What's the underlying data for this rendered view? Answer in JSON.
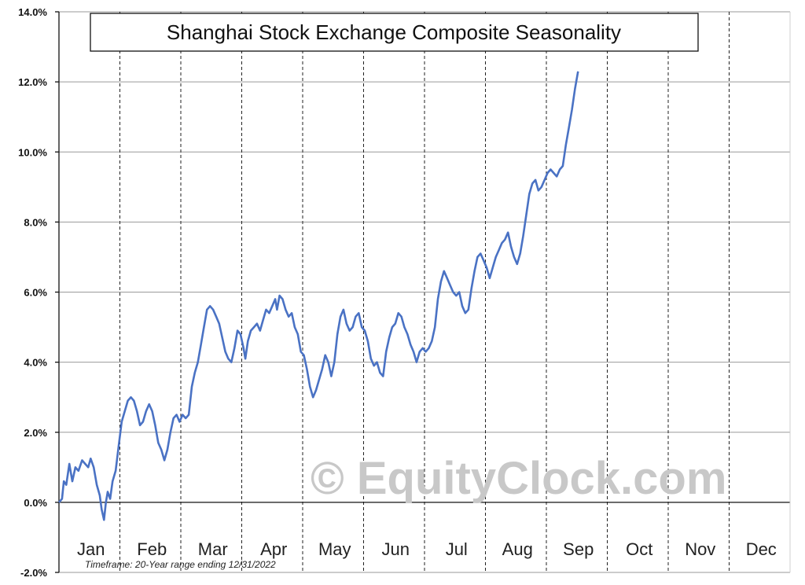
{
  "chart_data": {
    "type": "line",
    "title": "Shanghai Stock Exchange Composite Seasonality",
    "xlabel": "",
    "ylabel": "",
    "ylim": [
      -2.0,
      14.0
    ],
    "yticks": [
      "-2.0%",
      "0.0%",
      "2.0%",
      "4.0%",
      "6.0%",
      "8.0%",
      "10.0%",
      "12.0%",
      "14.0%"
    ],
    "x_tick_labels": [
      "Jan",
      "Feb",
      "Mar",
      "Apr",
      "May",
      "Jun",
      "Jul",
      "Aug",
      "Sep",
      "Oct",
      "Nov",
      "Dec"
    ],
    "x_units": "month (1 = start of Jan, 13 = end of Dec)",
    "grid": {
      "horizontal": true,
      "vertical_dashed": true
    },
    "line_color": "#4a72c4",
    "series": [
      {
        "values": [
          [
            1.0,
            0.0
          ],
          [
            1.05,
            0.1
          ],
          [
            1.08,
            0.6
          ],
          [
            1.12,
            0.5
          ],
          [
            1.17,
            1.1
          ],
          [
            1.22,
            0.6
          ],
          [
            1.27,
            1.0
          ],
          [
            1.32,
            0.9
          ],
          [
            1.38,
            1.2
          ],
          [
            1.43,
            1.1
          ],
          [
            1.48,
            1.0
          ],
          [
            1.52,
            1.25
          ],
          [
            1.57,
            1.0
          ],
          [
            1.62,
            0.5
          ],
          [
            1.67,
            0.2
          ],
          [
            1.7,
            -0.2
          ],
          [
            1.74,
            -0.5
          ],
          [
            1.77,
            0.0
          ],
          [
            1.8,
            0.3
          ],
          [
            1.84,
            0.1
          ],
          [
            1.88,
            0.6
          ],
          [
            1.93,
            0.9
          ],
          [
            1.98,
            1.6
          ],
          [
            2.03,
            2.3
          ],
          [
            2.08,
            2.6
          ],
          [
            2.13,
            2.9
          ],
          [
            2.18,
            3.0
          ],
          [
            2.23,
            2.9
          ],
          [
            2.28,
            2.6
          ],
          [
            2.33,
            2.2
          ],
          [
            2.38,
            2.3
          ],
          [
            2.43,
            2.6
          ],
          [
            2.48,
            2.8
          ],
          [
            2.53,
            2.6
          ],
          [
            2.58,
            2.2
          ],
          [
            2.63,
            1.7
          ],
          [
            2.68,
            1.5
          ],
          [
            2.73,
            1.2
          ],
          [
            2.78,
            1.5
          ],
          [
            2.83,
            2.0
          ],
          [
            2.88,
            2.4
          ],
          [
            2.93,
            2.5
          ],
          [
            2.98,
            2.3
          ],
          [
            3.03,
            2.5
          ],
          [
            3.08,
            2.4
          ],
          [
            3.13,
            2.5
          ],
          [
            3.18,
            3.3
          ],
          [
            3.23,
            3.7
          ],
          [
            3.28,
            4.0
          ],
          [
            3.33,
            4.5
          ],
          [
            3.38,
            5.0
          ],
          [
            3.43,
            5.5
          ],
          [
            3.48,
            5.6
          ],
          [
            3.53,
            5.5
          ],
          [
            3.58,
            5.3
          ],
          [
            3.63,
            5.1
          ],
          [
            3.68,
            4.7
          ],
          [
            3.73,
            4.3
          ],
          [
            3.78,
            4.1
          ],
          [
            3.83,
            4.0
          ],
          [
            3.88,
            4.4
          ],
          [
            3.93,
            4.9
          ],
          [
            3.98,
            4.8
          ],
          [
            4.03,
            4.4
          ],
          [
            4.06,
            4.1
          ],
          [
            4.1,
            4.6
          ],
          [
            4.15,
            4.9
          ],
          [
            4.2,
            5.0
          ],
          [
            4.25,
            5.1
          ],
          [
            4.3,
            4.9
          ],
          [
            4.35,
            5.2
          ],
          [
            4.4,
            5.5
          ],
          [
            4.45,
            5.4
          ],
          [
            4.5,
            5.6
          ],
          [
            4.55,
            5.8
          ],
          [
            4.58,
            5.5
          ],
          [
            4.62,
            5.9
          ],
          [
            4.67,
            5.8
          ],
          [
            4.72,
            5.5
          ],
          [
            4.77,
            5.3
          ],
          [
            4.82,
            5.4
          ],
          [
            4.87,
            5.0
          ],
          [
            4.92,
            4.8
          ],
          [
            4.97,
            4.3
          ],
          [
            5.02,
            4.2
          ],
          [
            5.07,
            3.8
          ],
          [
            5.12,
            3.3
          ],
          [
            5.17,
            3.0
          ],
          [
            5.22,
            3.2
          ],
          [
            5.27,
            3.5
          ],
          [
            5.32,
            3.8
          ],
          [
            5.37,
            4.2
          ],
          [
            5.42,
            4.0
          ],
          [
            5.47,
            3.6
          ],
          [
            5.52,
            4.0
          ],
          [
            5.57,
            4.8
          ],
          [
            5.62,
            5.3
          ],
          [
            5.67,
            5.5
          ],
          [
            5.72,
            5.1
          ],
          [
            5.77,
            4.9
          ],
          [
            5.82,
            5.0
          ],
          [
            5.87,
            5.3
          ],
          [
            5.92,
            5.4
          ],
          [
            5.97,
            5.0
          ],
          [
            6.02,
            4.9
          ],
          [
            6.07,
            4.6
          ],
          [
            6.12,
            4.1
          ],
          [
            6.17,
            3.9
          ],
          [
            6.22,
            4.0
          ],
          [
            6.27,
            3.7
          ],
          [
            6.32,
            3.6
          ],
          [
            6.37,
            4.3
          ],
          [
            6.42,
            4.7
          ],
          [
            6.47,
            5.0
          ],
          [
            6.52,
            5.1
          ],
          [
            6.57,
            5.4
          ],
          [
            6.62,
            5.3
          ],
          [
            6.67,
            5.0
          ],
          [
            6.72,
            4.8
          ],
          [
            6.77,
            4.5
          ],
          [
            6.82,
            4.3
          ],
          [
            6.87,
            4.0
          ],
          [
            6.92,
            4.3
          ],
          [
            6.97,
            4.4
          ],
          [
            7.02,
            4.3
          ],
          [
            7.07,
            4.4
          ],
          [
            7.12,
            4.6
          ],
          [
            7.17,
            5.0
          ],
          [
            7.22,
            5.8
          ],
          [
            7.27,
            6.3
          ],
          [
            7.32,
            6.6
          ],
          [
            7.37,
            6.4
          ],
          [
            7.42,
            6.2
          ],
          [
            7.47,
            6.0
          ],
          [
            7.52,
            5.9
          ],
          [
            7.57,
            6.0
          ],
          [
            7.62,
            5.6
          ],
          [
            7.67,
            5.4
          ],
          [
            7.72,
            5.5
          ],
          [
            7.77,
            6.1
          ],
          [
            7.82,
            6.6
          ],
          [
            7.87,
            7.0
          ],
          [
            7.92,
            7.1
          ],
          [
            7.97,
            6.9
          ],
          [
            8.02,
            6.7
          ],
          [
            8.07,
            6.4
          ],
          [
            8.12,
            6.7
          ],
          [
            8.17,
            7.0
          ],
          [
            8.22,
            7.2
          ],
          [
            8.27,
            7.4
          ],
          [
            8.32,
            7.5
          ],
          [
            8.37,
            7.7
          ],
          [
            8.42,
            7.3
          ],
          [
            8.47,
            7.0
          ],
          [
            8.52,
            6.8
          ],
          [
            8.57,
            7.1
          ],
          [
            8.62,
            7.6
          ],
          [
            8.67,
            8.2
          ],
          [
            8.72,
            8.8
          ],
          [
            8.77,
            9.1
          ],
          [
            8.82,
            9.2
          ],
          [
            8.87,
            8.9
          ],
          [
            8.92,
            9.0
          ],
          [
            8.97,
            9.2
          ],
          [
            9.02,
            9.4
          ],
          [
            9.07,
            9.5
          ],
          [
            9.12,
            9.4
          ],
          [
            9.17,
            9.3
          ],
          [
            9.22,
            9.5
          ],
          [
            9.27,
            9.6
          ],
          [
            9.32,
            10.2
          ],
          [
            9.37,
            10.7
          ],
          [
            9.42,
            11.2
          ],
          [
            9.47,
            11.8
          ],
          [
            9.52,
            12.3
          ]
        ]
      }
    ]
  },
  "footnote": "Timeframe: 20-Year range ending 12/31/2022",
  "watermark": "© EquityClock.com"
}
